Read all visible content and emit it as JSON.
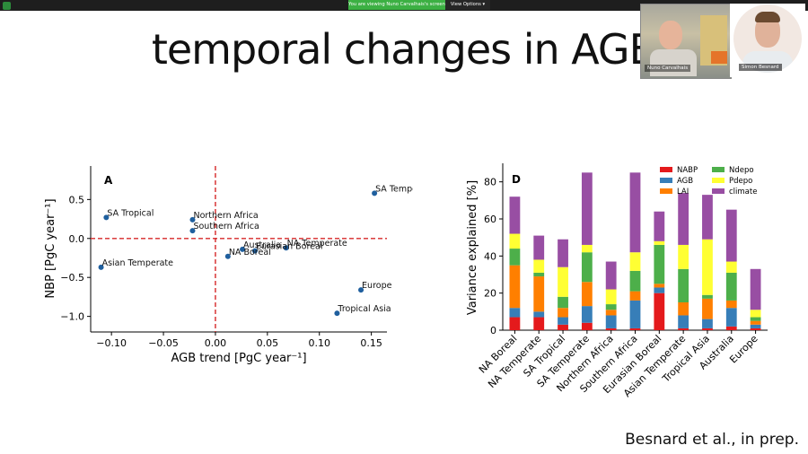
{
  "window": {
    "share_banner": "You are viewing Nuno Carvalhais's screen",
    "view_options": "View Options ▾"
  },
  "videos": [
    {
      "name": "Nuno Carvalhais"
    },
    {
      "name": "Simon Besnard"
    }
  ],
  "slide": {
    "title": "temporal changes in AGB",
    "citation": "Besnard et al., in prep."
  },
  "chart_data": [
    {
      "type": "scatter",
      "panel_label": "A",
      "xlabel": "AGB trend [PgC year⁻¹]",
      "ylabel": "NBP [PgC year⁻¹]",
      "xlim": [
        -0.12,
        0.165
      ],
      "ylim": [
        -1.2,
        0.93
      ],
      "xticks": [
        "−0.10",
        "−0.05",
        "0.00",
        "0.05",
        "0.10",
        "0.15"
      ],
      "xtick_values": [
        -0.1,
        -0.05,
        0,
        0.05,
        0.1,
        0.15
      ],
      "yticks": [
        "0.5",
        "0.0",
        "−0.5",
        "−1.0"
      ],
      "ytick_values": [
        0.5,
        0,
        -0.5,
        -1.0
      ],
      "reference_lines": {
        "x": 0,
        "y": 0,
        "color": "#d62728",
        "style": "dashed"
      },
      "point_color": "#1f5f9e",
      "points": [
        {
          "label": "SA Temperate",
          "x": 0.153,
          "y": 0.58
        },
        {
          "label": "SA Tropical",
          "x": -0.105,
          "y": 0.27
        },
        {
          "label": "Northern Africa",
          "x": -0.022,
          "y": 0.24
        },
        {
          "label": "Southern Africa",
          "x": -0.022,
          "y": 0.1
        },
        {
          "label": "NA Temperate",
          "x": 0.068,
          "y": -0.12
        },
        {
          "label": "Australia",
          "x": 0.026,
          "y": -0.14
        },
        {
          "label": "Eurasian Boreal",
          "x": 0.038,
          "y": -0.16
        },
        {
          "label": "NA Boreal",
          "x": 0.012,
          "y": -0.23
        },
        {
          "label": "Asian Temperate",
          "x": -0.11,
          "y": -0.37
        },
        {
          "label": "Europe",
          "x": 0.14,
          "y": -0.66
        },
        {
          "label": "Tropical Asia",
          "x": 0.117,
          "y": -0.96
        }
      ]
    },
    {
      "type": "bar",
      "stacked": true,
      "panel_label": "D",
      "ylabel": "Variance explained [%]",
      "ylim": [
        0,
        90
      ],
      "yticks": [
        0,
        20,
        40,
        60,
        80
      ],
      "categories": [
        "NA Boreal",
        "NA Temperate",
        "SA Tropical",
        "SA Temperate",
        "Northern Africa",
        "Southern Africa",
        "Eurasian Boreal",
        "Asian Temperate",
        "Tropical Asia",
        "Australia",
        "Europe"
      ],
      "legend": {
        "placement": "top-right",
        "columns": 2
      },
      "series": [
        {
          "name": "NABP",
          "color": "#e41a1c",
          "values": [
            7,
            7,
            3,
            4,
            1,
            1,
            20,
            1,
            1,
            2,
            1
          ]
        },
        {
          "name": "AGB",
          "color": "#377eb8",
          "values": [
            5,
            3,
            4,
            9,
            7,
            15,
            3,
            7,
            5,
            10,
            2
          ]
        },
        {
          "name": "LAI",
          "color": "#ff7f00",
          "values": [
            23,
            19,
            5,
            13,
            3,
            5,
            2,
            7,
            11,
            4,
            2
          ]
        },
        {
          "name": "Ndepo",
          "color": "#4daf4a",
          "values": [
            9,
            2,
            6,
            16,
            3,
            11,
            21,
            18,
            2,
            15,
            2
          ]
        },
        {
          "name": "Pdepo",
          "color": "#ffff33",
          "values": [
            8,
            7,
            16,
            4,
            8,
            10,
            2,
            13,
            30,
            6,
            4
          ]
        },
        {
          "name": "climate",
          "color": "#984ea3",
          "values": [
            20,
            13,
            15,
            39,
            15,
            43,
            16,
            28,
            24,
            28,
            22
          ]
        }
      ]
    }
  ]
}
